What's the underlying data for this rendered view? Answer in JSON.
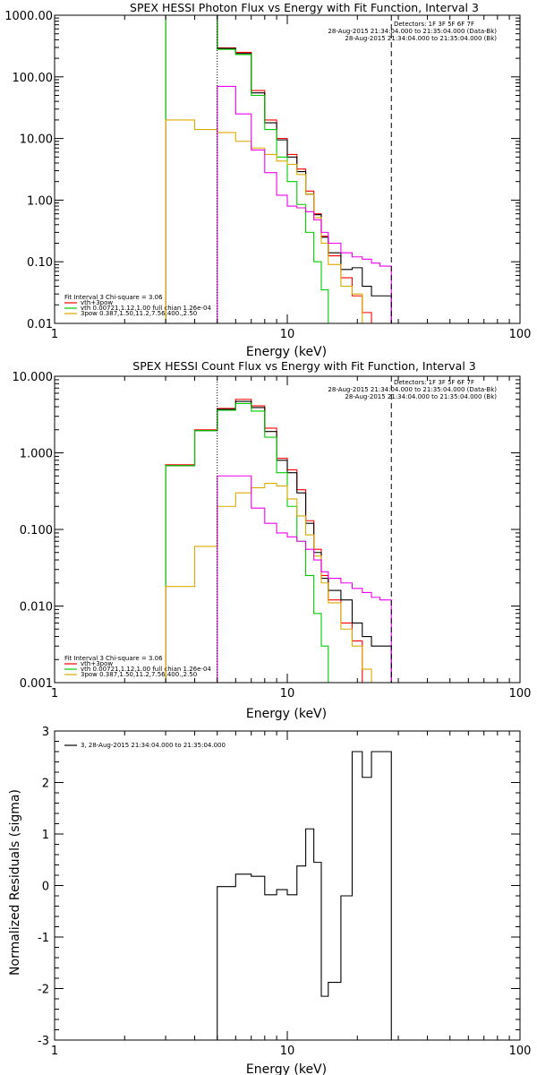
{
  "chart_data": [
    {
      "type": "line",
      "title": "SPEX HESSI Photon Flux vs Energy with Fit Function, Interval 3",
      "xlabel": "Energy (keV)",
      "ylabel": "",
      "xscale": "log",
      "yscale": "log",
      "xlim": [
        1,
        100
      ],
      "ylim": [
        0.01,
        1000
      ],
      "xtick_labels": [
        "1",
        "10",
        "100"
      ],
      "ytick_labels": [
        "1000.00",
        "100.00",
        "10.00",
        "1.00",
        "0.10",
        "0.01"
      ],
      "info_text": [
        "Detectors: 1F 3F 5F 6F 7F",
        "28-Aug-2015 21:34:04.000 to 21:35:04.000 (Data-Bk)",
        "28-Aug-2015 21:34:04.000 to 21:35:04.000 (Bk)"
      ],
      "fit_info": [
        "Fit Interval 3",
        "Chi-square = 3.06"
      ],
      "vlines": [
        {
          "x": 5.0,
          "style": "dotted"
        },
        {
          "x": 28.0,
          "style": "dashed"
        }
      ],
      "series": [
        {
          "name": "vth+3pow",
          "color": "#ff0000",
          "edges": [
            3,
            4,
            5,
            6,
            7,
            8,
            9,
            10,
            11,
            12,
            13,
            14,
            15,
            17,
            19,
            21,
            23,
            25,
            28
          ],
          "values": [
            1000,
            1000,
            295,
            250,
            60,
            20,
            10,
            5.5,
            3.2,
            1.4,
            0.6,
            0.26,
            0.125,
            0.055,
            0.028,
            0.015,
            0.01,
            0.01
          ]
        },
        {
          "name": "",
          "color": "#000000",
          "edges": [
            3,
            4,
            5,
            6,
            7,
            8,
            9,
            10,
            11,
            12,
            13,
            14,
            15,
            17,
            19,
            21,
            23,
            25,
            28
          ],
          "values": [
            1000,
            1000,
            290,
            240,
            55,
            18,
            9.5,
            5,
            2.9,
            1.25,
            0.58,
            0.25,
            0.14,
            0.075,
            0.08,
            0.04,
            0.028,
            0.028
          ]
        },
        {
          "name": "vth 0.00721,1.12,1.00  full chian 1.26e-04",
          "color": "#00cc00",
          "edges": [
            3,
            4,
            5,
            6,
            7,
            8,
            9,
            10,
            11,
            12,
            13,
            14,
            15,
            16
          ],
          "values": [
            1000,
            1000,
            280,
            230,
            50,
            14,
            5,
            2,
            0.85,
            0.3,
            0.1,
            0.035,
            0.01
          ]
        },
        {
          "name": "3pow 0.387,1.50,11.2,7.56,400.,2.50",
          "color": "#ddaa00",
          "edges": [
            3,
            4,
            5,
            6,
            7,
            8,
            9,
            10,
            11,
            12,
            13,
            14,
            15,
            17,
            19,
            21,
            23,
            25,
            28
          ],
          "values": [
            20,
            14,
            12.5,
            9,
            7,
            5.5,
            4.3,
            3.8,
            2.6,
            1.25,
            0.52,
            0.2,
            0.09,
            0.04,
            0.03,
            0.01,
            0.01,
            0.01
          ]
        },
        {
          "name": "",
          "color": "#ee00ee",
          "edges": [
            5,
            6,
            7,
            8,
            9,
            10,
            11,
            12,
            13,
            14,
            15,
            17,
            19,
            21,
            23,
            25,
            28
          ],
          "values": [
            70,
            25,
            6.5,
            2.8,
            1.2,
            0.8,
            0.75,
            0.65,
            0.48,
            0.3,
            0.2,
            0.14,
            0.12,
            0.11,
            0.095,
            0.085
          ]
        }
      ]
    },
    {
      "type": "line",
      "title": "SPEX HESSI Count Flux vs Energy with Fit Function, Interval 3",
      "xlabel": "Energy (keV)",
      "ylabel": "",
      "xscale": "log",
      "yscale": "log",
      "xlim": [
        1,
        100
      ],
      "ylim": [
        0.001,
        10
      ],
      "xtick_labels": [
        "1",
        "10",
        "100"
      ],
      "ytick_labels": [
        "10.000",
        "1.000",
        "0.100",
        "0.010",
        "0.001"
      ],
      "info_text": [
        "Detectors: 1F 3F 5F 6F 7F",
        "28-Aug-2015 21:34:04.000 to 21:35:04.000 (Data-Bk)",
        "28-Aug-2015 21:34:04.000 to 21:35:04.000 (Bk)"
      ],
      "fit_info": [
        "Fit Interval 3",
        "Chi-square = 3.06"
      ],
      "vlines": [
        {
          "x": 5.0,
          "style": "dotted"
        },
        {
          "x": 28.0,
          "style": "dashed"
        }
      ],
      "series": [
        {
          "name": "vth+3pow",
          "color": "#ff0000",
          "edges": [
            3,
            4,
            5,
            6,
            7,
            8,
            9,
            10,
            11,
            12,
            13,
            14,
            15,
            17,
            19,
            21,
            23,
            25,
            28
          ],
          "values": [
            0.7,
            2.0,
            3.8,
            5.0,
            4.1,
            2.1,
            0.85,
            0.6,
            0.33,
            0.13,
            0.055,
            0.025,
            0.012,
            0.006,
            0.0035,
            0.001,
            0.001,
            0.001
          ]
        },
        {
          "name": "",
          "color": "#000000",
          "edges": [
            3,
            4,
            5,
            6,
            7,
            8,
            9,
            10,
            11,
            12,
            13,
            14,
            15,
            17,
            19,
            21,
            23,
            25,
            28
          ],
          "values": [
            0.68,
            1.95,
            3.7,
            4.7,
            3.9,
            1.9,
            0.8,
            0.55,
            0.3,
            0.12,
            0.05,
            0.023,
            0.016,
            0.012,
            0.006,
            0.004,
            0.003,
            0.003
          ]
        },
        {
          "name": "vth 0.00721,1.12,1.00  full chian 1.26e-04",
          "color": "#00cc00",
          "edges": [
            3,
            4,
            5,
            6,
            7,
            8,
            9,
            10,
            11,
            12,
            13,
            14,
            15,
            16
          ],
          "values": [
            0.68,
            1.95,
            3.6,
            4.4,
            3.5,
            1.6,
            0.55,
            0.2,
            0.07,
            0.025,
            0.008,
            0.003,
            0.001
          ]
        },
        {
          "name": "3pow 0.387,1.50,11.2,7.56,400.,2.50",
          "color": "#ddaa00",
          "edges": [
            3,
            4,
            5,
            6,
            7,
            8,
            9,
            10,
            11,
            12,
            13,
            14,
            15,
            17,
            19,
            21,
            23,
            25,
            28
          ],
          "values": [
            0.018,
            0.06,
            0.2,
            0.3,
            0.35,
            0.4,
            0.37,
            0.25,
            0.15,
            0.085,
            0.045,
            0.02,
            0.011,
            0.005,
            0.003,
            0.0015,
            0.001,
            0.001
          ]
        },
        {
          "name": "",
          "color": "#ee00ee",
          "edges": [
            5,
            6,
            7,
            8,
            9,
            10,
            11,
            12,
            13,
            14,
            15,
            17,
            19,
            21,
            23,
            25,
            28
          ],
          "values": [
            0.5,
            0.5,
            0.19,
            0.12,
            0.09,
            0.08,
            0.07,
            0.055,
            0.04,
            0.028,
            0.023,
            0.02,
            0.017,
            0.015,
            0.013,
            0.012
          ]
        }
      ]
    },
    {
      "type": "line",
      "title": "",
      "xlabel": "Energy (keV)",
      "ylabel": "Normalized Residuals (sigma)",
      "xscale": "log",
      "yscale": "linear",
      "xlim": [
        1,
        100
      ],
      "ylim": [
        -3,
        3
      ],
      "xtick_labels": [
        "1",
        "10",
        "100"
      ],
      "ytick_labels": [
        "3",
        "2",
        "1",
        "0",
        "-1",
        "-2",
        "-3"
      ],
      "series": [
        {
          "name": "3, 28-Aug-2015 21:34:04.000 to 21:35:04.000",
          "color": "#000000",
          "edges": [
            5,
            6,
            7,
            8,
            9,
            10,
            11,
            12,
            13,
            14,
            15,
            17,
            19,
            21,
            23,
            25,
            28
          ],
          "values": [
            -0.02,
            0.22,
            0.18,
            -0.18,
            -0.08,
            -0.18,
            0.38,
            1.1,
            0.45,
            -2.15,
            -1.88,
            -0.2,
            2.6,
            2.1,
            2.6,
            2.6
          ]
        }
      ]
    }
  ]
}
